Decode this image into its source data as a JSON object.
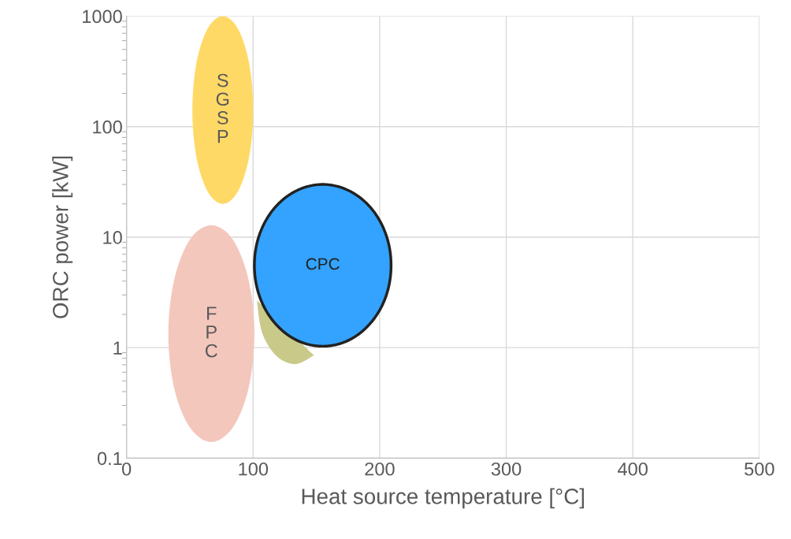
{
  "chart_data": {
    "type": "area",
    "xlabel": "Heat source temperature [°C]",
    "ylabel": "ORC power [kW]",
    "log": "y",
    "xlim": [
      0,
      500
    ],
    "xticks": [
      0,
      100,
      200,
      300,
      400,
      500
    ],
    "ylim": [
      0.1,
      1000
    ],
    "yticks": [
      0.1,
      1,
      10,
      100,
      1000
    ],
    "grid": true,
    "series": [
      {
        "name": "SGSP",
        "color": "#ffd966",
        "x": [
          100,
          96.8,
          88,
          76,
          64,
          55.2,
          52,
          55.2,
          64,
          76,
          88,
          96.8
        ],
        "values": [
          141,
          376,
          769,
          1000,
          769,
          376,
          141,
          53,
          26,
          20,
          26,
          53
        ]
      },
      {
        "name": "FPC",
        "color": "#f4c7bc",
        "x": [
          101,
          96.4,
          84,
          67,
          50,
          37.6,
          33,
          37.6,
          50,
          67,
          84,
          96.4
        ],
        "values": [
          1.34,
          4.1,
          9.5,
          12.8,
          9.5,
          4.1,
          1.34,
          0.43,
          0.19,
          0.14,
          0.19,
          0.43
        ]
      },
      {
        "color": "#c9c98a",
        "x": [
          103,
          107,
          118,
          133,
          148
        ],
        "values": [
          2.67,
          1.38,
          0.85,
          0.71,
          0.85
        ]
      },
      {
        "name": "CPC",
        "color": "#33a3ff",
        "line_style": "solid",
        "x": [
          209,
          207.2,
          201.8,
          193.2,
          182,
          169,
          155,
          141,
          128,
          116.8,
          108.2,
          102.8,
          101,
          102.8,
          108.2,
          116.8,
          128,
          141,
          155,
          169,
          182,
          193.2,
          201.8,
          207.2
        ],
        "values": [
          5.56,
          8.6,
          12.9,
          18.3,
          23.9,
          28.3,
          30,
          28.3,
          23.9,
          18.3,
          12.9,
          8.6,
          5.56,
          3.59,
          2.39,
          1.69,
          1.29,
          1.09,
          1.03,
          1.09,
          1.29,
          1.69,
          2.39,
          3.59
        ]
      }
    ]
  }
}
